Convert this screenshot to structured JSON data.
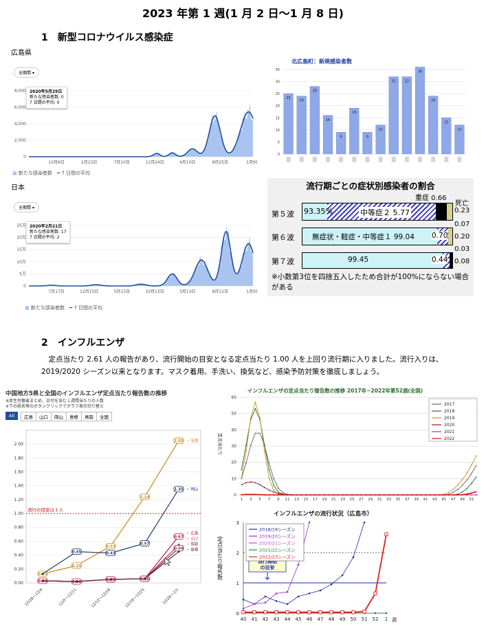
{
  "title": "2023 年第 1 週(1 月 2 日〜1 月 8 日)",
  "section1": {
    "heading": "1　新型コロナウイルス感染症",
    "hiroshima": {
      "label": "広島県",
      "period_button": "全期間",
      "tooltip": [
        "2020年5月29日",
        "新たな感染者数: 0",
        "7 日間の平均: 0"
      ],
      "y_ticks": [
        "8,000",
        "6,000",
        "4,000",
        "2,000",
        "0"
      ],
      "x_ticks": [
        "10月9日",
        "2月23日",
        "7月10日",
        "11月24日",
        "4月10日",
        "8月25日",
        "1月9日"
      ],
      "legend_bar": "新たな感染者数",
      "legend_line": "7 日間の平均"
    },
    "japan": {
      "label": "日本",
      "period_button": "全期間",
      "tooltip": [
        "2020年2月21日",
        "新たな感染者数: 17",
        "7 日間の平均: 2"
      ],
      "y_ticks": [
        "25万",
        "20万",
        "15万",
        "10万",
        "5万",
        "0"
      ],
      "x_ticks": [
        "7月17日",
        "12月15日",
        "5月15日",
        "10月13日",
        "3月13日",
        "8月11日",
        "1月9日"
      ],
      "legend_bar": "新たな感染者数",
      "legend_line": "7 日間の平均"
    },
    "kitahiroshima": {
      "chart_data": {
        "type": "bar",
        "title": "北広島町：新規感染者数",
        "values": [
          25,
          24,
          28,
          16,
          9,
          19,
          9,
          12,
          32,
          32,
          36,
          24,
          15,
          12
        ],
        "y_ticks": [
          "35",
          "30",
          "25",
          "20",
          "15",
          "10",
          "5",
          "0"
        ],
        "ylim": [
          0,
          37
        ],
        "color": "#8ea8e8"
      }
    },
    "severity": {
      "title": "流行期ごとの症状別感染者の割合",
      "rows": [
        {
          "wave": "第５波",
          "mild": "93.35%",
          "moderate": "中等症２ 5.77",
          "severe_label": "重症 0.66",
          "death_label": "死亡",
          "death_value": "0.23"
        },
        {
          "wave": "第６波",
          "mild": "無症状・軽症・中等症１ 99.04",
          "moderate": "0.70",
          "severe_value": "0.07",
          "death_value": "0.20"
        },
        {
          "wave": "第７波",
          "mild": "99.45",
          "moderate": "0.44",
          "severe_value": "0.03",
          "death_value": "0.08"
        }
      ],
      "note": "※小数第3位を四捨五入したため合計が100%にならない場合がある"
    }
  },
  "section2": {
    "heading": "2　インフルエンザ",
    "paragraph": "定点当たり 2.61 人の報告があり、流行開始の目安となる定点当たり 1.00 人を上回り流行期に入りました。流行入りは、2019/2020 シーズン以来となります。マスク着用、手洗い、換気など、感染予防対策を徹底しましょう。",
    "chugoku": {
      "title": "中国地方5県と全国のインフルエンザ定点当たり報告数の推移",
      "notes": [
        "※厚生労働省まとめ、日付を含む１週間当たりの人数",
        "※下の県名等のボタンクリックでグラフ表示切り替え"
      ],
      "filters": [
        "All",
        "広島",
        "山口",
        "岡山",
        "島根",
        "鳥取",
        "全国"
      ],
      "threshold_label": "流行の目安は１人",
      "y_ticks": [
        "2.00",
        "1.80",
        "1.60",
        "1.40",
        "1.20",
        "1.00",
        "0.80",
        "0.60",
        "0.40",
        "0.20",
        "0.00"
      ],
      "chart_data": {
        "type": "line",
        "categories": [
          "12/28〜12/4",
          "12/5〜12/11",
          "12/12〜12/18",
          "12/19〜12/25",
          "12/26〜1/1"
        ],
        "ylim": [
          0,
          2.1
        ],
        "series": [
          {
            "name": "全国",
            "color": "#cc8a1c",
            "values": [
              0.13,
              0.25,
              0.53,
              1.24,
              2.05
            ],
            "labels": [
              "0.13",
              "0.25",
              "0.53",
              "1.24",
              "2.05"
            ]
          },
          {
            "name": "岡山",
            "color": "#1f3c6e",
            "values": [
              0.13,
              0.45,
              0.43,
              0.57,
              1.35
            ],
            "labels": [
              "",
              "0.45",
              "0.43",
              "0.57",
              "1.35"
            ]
          },
          {
            "name": "広島",
            "color": "#b0183c",
            "values": [
              0.03,
              0.02,
              0.05,
              0.06,
              0.67
            ],
            "labels": [
              "0.03",
              "0.02",
              "0.05",
              "0.06",
              "0.67"
            ]
          },
          {
            "name": "山口",
            "color": "#c23a3a",
            "values": [
              0.03,
              0.02,
              0.05,
              0.06,
              0.55
            ],
            "labels": [
              "",
              "",
              "",
              "",
              ""
            ]
          },
          {
            "name": "鳥取",
            "color": "#7a2850",
            "values": [
              0.03,
              0.02,
              0.05,
              0.06,
              0.5
            ],
            "labels": [
              "",
              "",
              "",
              "",
              "0.50"
            ]
          },
          {
            "name": "島根",
            "color": "#5a2a4a",
            "values": [
              0.03,
              0.02,
              0.05,
              0.06,
              0.45
            ],
            "labels": [
              "",
              "",
              "",
              "",
              ""
            ]
          }
        ],
        "end_labels": [
          "全国",
          "岡山",
          "広島",
          "山口",
          "鳥取",
          "島根"
        ]
      }
    },
    "national": {
      "title": "インフルエンザの定点当たり報告数の推移 2017年−2022年第52週(全国)",
      "ylabel": "定点当たり",
      "y_ticks": [
        "60",
        "50",
        "40",
        "30",
        "20",
        "10",
        "0"
      ],
      "x_ticks": [
        "1",
        "3",
        "5",
        "7",
        "9",
        "11",
        "13",
        "15",
        "17",
        "19",
        "21",
        "23",
        "25",
        "27",
        "29",
        "31",
        "33",
        "35",
        "37",
        "39",
        "41",
        "43",
        "45",
        "47",
        "49",
        "51"
      ],
      "legend": [
        "2017",
        "2018",
        "2019",
        "2020",
        "2021",
        "2022"
      ],
      "colors": [
        "#666666",
        "#2e6b2e",
        "#c8901e",
        "#8a1c1c",
        "#c020c0",
        "#d41010"
      ]
    },
    "hiroshima_city": {
      "title": "インフルエンザの流行状況（広島市）",
      "ylabel": "定点当たり報告数",
      "y_ticks": [
        "3",
        "2",
        "1",
        "0"
      ],
      "x_ticks": [
        "40",
        "41",
        "42",
        "43",
        "44",
        "45",
        "46",
        "47",
        "48",
        "49",
        "50",
        "51",
        "52",
        "1"
      ],
      "x_unit": "週",
      "threshold_label": [
        "流行開始",
        "の目安"
      ],
      "legend": [
        "2018/19シーズン",
        "2019/20シーズン",
        "2020/21シーズン",
        "2021/22シーズン",
        "2022/23シーズン"
      ],
      "colors": [
        "#1a2aa0",
        "#9a30c0",
        "#d040d0",
        "#208a30",
        "#e02020"
      ],
      "chart_data": {
        "type": "line",
        "x": [
          "40",
          "41",
          "42",
          "43",
          "44",
          "45",
          "46",
          "47",
          "48",
          "49",
          "50",
          "51",
          "52",
          "1"
        ],
        "series": [
          {
            "name": "2018/19シーズン",
            "values": [
              0.45,
              0.3,
              0.55,
              0.4,
              0.3,
              0.55,
              0.65,
              0.75,
              0.95,
              1.25,
              1.85,
              3.0,
              null,
              null
            ]
          },
          {
            "name": "2019/20シーズン",
            "values": [
              0.15,
              0.3,
              0.35,
              0.65,
              0.7,
              1.6,
              3.0,
              null,
              null,
              null,
              null,
              null,
              null,
              null
            ]
          },
          {
            "name": "2020/21シーズン",
            "values": [
              0.0,
              0.0,
              0.0,
              0.0,
              0.0,
              0.0,
              0.0,
              0.0,
              0.0,
              0.0,
              0.0,
              0.0,
              0.0,
              0.0
            ]
          },
          {
            "name": "2021/22シーズン",
            "values": [
              0.0,
              0.0,
              0.0,
              0.0,
              0.0,
              0.0,
              0.0,
              0.0,
              0.0,
              0.0,
              0.0,
              0.0,
              0.0,
              0.0
            ]
          },
          {
            "name": "2022/23シーズン",
            "values": [
              0.03,
              0.03,
              0.03,
              0.03,
              0.03,
              0.03,
              0.03,
              0.03,
              0.03,
              0.03,
              0.03,
              0.05,
              0.65,
              2.61
            ]
          }
        ],
        "ylim": [
          0,
          3
        ]
      }
    }
  }
}
